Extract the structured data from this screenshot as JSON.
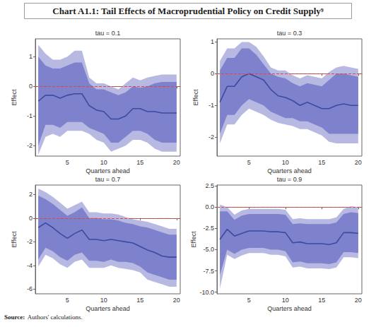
{
  "title": "Chart A1.1: Tail Effects of Macroprudential Policy on Credit Supply⁹",
  "source_label": "Source:",
  "source_text": "Authors' calculations.",
  "chart_data": [
    {
      "type": "line",
      "title": "tau = 0.1",
      "x_label": "Quarters ahead",
      "y_label": "Effect",
      "x": [
        1,
        2,
        3,
        4,
        5,
        6,
        7,
        8,
        9,
        10,
        11,
        12,
        13,
        14,
        15,
        16,
        17,
        18,
        19,
        20
      ],
      "xlim": [
        0.6,
        20.5
      ],
      "xticks": [
        5,
        10,
        15,
        20
      ],
      "ylim": [
        -2.35,
        1.6
      ],
      "yticks": [
        -2,
        -1,
        0,
        1
      ],
      "grid": false,
      "series": [
        {
          "type": "band",
          "color": "#b8b9e2",
          "lower": [
            -2.3,
            -1.7,
            -1.6,
            -1.7,
            -1.5,
            -1.5,
            -1.5,
            -1.6,
            -1.8,
            -1.9,
            -2.2,
            -2.1,
            -2.0,
            -1.8,
            -1.8,
            -1.9,
            -2.1,
            -2.2,
            -2.2,
            -2.2
          ],
          "upper": [
            1.4,
            1.1,
            0.9,
            0.9,
            1.0,
            1.2,
            1.2,
            0.3,
            0.1,
            0.1,
            0.0,
            -0.1,
            0.1,
            0.3,
            0.2,
            0.3,
            0.35,
            0.4,
            0.4,
            0.4
          ]
        },
        {
          "type": "band",
          "color": "#7e82cc",
          "lower": [
            -2.0,
            -1.3,
            -1.3,
            -1.4,
            -1.2,
            -1.2,
            -1.2,
            -1.4,
            -1.5,
            -1.6,
            -1.9,
            -1.9,
            -1.7,
            -1.5,
            -1.5,
            -1.6,
            -1.8,
            -1.9,
            -1.9,
            -1.9
          ],
          "upper": [
            1.0,
            0.7,
            0.6,
            0.6,
            0.7,
            0.8,
            0.8,
            0.1,
            -0.1,
            -0.1,
            -0.2,
            -0.3,
            -0.2,
            0.0,
            -0.05,
            0.0,
            0.1,
            0.15,
            0.15,
            0.15
          ]
        },
        {
          "type": "line",
          "color": "#3b4aa3",
          "values": [
            -0.5,
            -0.3,
            -0.3,
            -0.4,
            -0.3,
            -0.25,
            -0.25,
            -0.65,
            -0.8,
            -0.85,
            -1.1,
            -1.1,
            -1.0,
            -0.75,
            -0.75,
            -0.85,
            -0.85,
            -0.9,
            -0.9,
            -0.9
          ]
        },
        {
          "type": "hline",
          "color": "#e5473d",
          "line_style": "dashed",
          "value": 0
        }
      ]
    },
    {
      "type": "line",
      "title": "tau = 0.3",
      "x_label": "Quarters ahead",
      "y_label": "Effect",
      "x": [
        1,
        2,
        3,
        4,
        5,
        6,
        7,
        8,
        9,
        10,
        11,
        12,
        13,
        14,
        15,
        16,
        17,
        18,
        19,
        20
      ],
      "xlim": [
        0.6,
        20.5
      ],
      "xticks": [
        5,
        10,
        15,
        20
      ],
      "ylim": [
        -2.6,
        1.1
      ],
      "yticks": [
        -2,
        -1,
        0,
        1
      ],
      "grid": false,
      "series": [
        {
          "type": "band",
          "color": "#b8b9e2",
          "lower": [
            -2.2,
            -1.6,
            -1.6,
            -1.3,
            -1.1,
            -1.2,
            -1.3,
            -1.45,
            -1.55,
            -1.6,
            -1.65,
            -1.75,
            -1.75,
            -1.85,
            -1.95,
            -2.15,
            -2.2,
            -2.2,
            -2.2,
            -2.2
          ],
          "upper": [
            0.4,
            0.8,
            0.8,
            1.0,
            1.0,
            0.85,
            0.55,
            0.2,
            0.1,
            0.1,
            -0.05,
            -0.15,
            -0.05,
            -0.1,
            -0.15,
            0.05,
            0.2,
            0.25,
            0.2,
            0.15
          ]
        },
        {
          "type": "band",
          "color": "#7e82cc",
          "lower": [
            -1.9,
            -1.3,
            -1.3,
            -1.0,
            -0.8,
            -0.9,
            -1.0,
            -1.2,
            -1.3,
            -1.4,
            -1.4,
            -1.5,
            -1.5,
            -1.6,
            -1.7,
            -1.9,
            -1.9,
            -1.9,
            -1.9,
            -1.9
          ],
          "upper": [
            0.1,
            0.5,
            0.5,
            0.8,
            0.8,
            0.6,
            0.3,
            0.0,
            -0.1,
            -0.15,
            -0.3,
            -0.4,
            -0.3,
            -0.35,
            -0.4,
            -0.2,
            0.0,
            0.0,
            -0.05,
            -0.1
          ]
        },
        {
          "type": "line",
          "color": "#3b4aa3",
          "values": [
            -0.9,
            -0.4,
            -0.4,
            -0.1,
            0.0,
            -0.1,
            -0.2,
            -0.5,
            -0.7,
            -0.75,
            -0.85,
            -1.0,
            -0.9,
            -1.0,
            -1.1,
            -1.1,
            -1.0,
            -0.95,
            -1.0,
            -1.0
          ]
        },
        {
          "type": "hline",
          "color": "#e5473d",
          "line_style": "dashed",
          "value": 0
        }
      ]
    },
    {
      "type": "line",
      "title": "tau = 0.7",
      "x_label": "Quarters ahead",
      "y_label": "Effect",
      "x": [
        1,
        2,
        3,
        4,
        5,
        6,
        7,
        8,
        9,
        10,
        11,
        12,
        13,
        14,
        15,
        16,
        17,
        18,
        19,
        20
      ],
      "xlim": [
        0.6,
        20.5
      ],
      "xticks": [
        5,
        10,
        15,
        20
      ],
      "ylim": [
        -6.4,
        2.8
      ],
      "yticks": [
        -6,
        -4,
        -2,
        0,
        2
      ],
      "grid": false,
      "series": [
        {
          "type": "band",
          "color": "#b8b9e2",
          "lower": [
            -4.1,
            -3.1,
            -3.4,
            -3.9,
            -4.2,
            -3.7,
            -3.5,
            -4.2,
            -4.2,
            -4.2,
            -4.0,
            -4.2,
            -4.3,
            -4.4,
            -4.6,
            -5.2,
            -5.4,
            -5.6,
            -5.8,
            -5.8
          ],
          "upper": [
            2.5,
            2.2,
            1.8,
            1.3,
            0.8,
            1.1,
            1.4,
            0.5,
            0.5,
            0.4,
            0.4,
            0.3,
            0.1,
            -0.1,
            -0.2,
            -0.3,
            -0.5,
            -0.7,
            -0.9,
            -0.9
          ]
        },
        {
          "type": "band",
          "color": "#7e82cc",
          "lower": [
            -3.5,
            -2.5,
            -2.8,
            -3.3,
            -3.6,
            -3.1,
            -2.9,
            -3.6,
            -3.6,
            -3.7,
            -3.5,
            -3.7,
            -3.7,
            -3.8,
            -4.1,
            -4.6,
            -4.8,
            -5.0,
            -5.2,
            -5.2
          ],
          "upper": [
            1.9,
            1.6,
            1.2,
            0.7,
            0.2,
            0.5,
            0.9,
            0.0,
            0.0,
            -0.1,
            -0.1,
            -0.2,
            -0.4,
            -0.5,
            -0.7,
            -0.8,
            -1.0,
            -1.2,
            -1.4,
            -1.4
          ]
        },
        {
          "type": "line",
          "color": "#3b4aa3",
          "values": [
            -0.8,
            -0.4,
            -0.8,
            -1.3,
            -1.7,
            -1.3,
            -1.0,
            -1.8,
            -1.8,
            -1.9,
            -1.8,
            -1.9,
            -2.0,
            -2.1,
            -2.4,
            -2.7,
            -2.9,
            -3.2,
            -3.3,
            -3.3
          ]
        },
        {
          "type": "hline",
          "color": "#e5473d",
          "line_style": "dashed",
          "value": 0
        }
      ]
    },
    {
      "type": "line",
      "title": "tau = 0.9",
      "x_label": "Quarters ahead",
      "y_label": "Effect",
      "x": [
        1,
        2,
        3,
        4,
        5,
        6,
        7,
        8,
        9,
        10,
        11,
        12,
        13,
        14,
        15,
        16,
        17,
        18,
        19,
        20
      ],
      "xlim": [
        0.6,
        20.5
      ],
      "xticks": [
        5,
        10,
        15,
        20
      ],
      "ylim": [
        -10.2,
        2.6
      ],
      "yticks": [
        {
          "value": -10,
          "label": "-10.0"
        },
        {
          "value": -7.5,
          "label": "-7.5"
        },
        {
          "value": -5,
          "label": "-5.0"
        },
        {
          "value": -2.5,
          "label": "-2.5"
        },
        {
          "value": 0,
          "label": "0.0"
        },
        {
          "value": 2.5,
          "label": "2.5"
        }
      ],
      "grid": false,
      "series": [
        {
          "type": "band",
          "color": "#b8b9e2",
          "lower": [
            -9.6,
            -5.6,
            -6.1,
            -5.7,
            -5.4,
            -5.4,
            -5.4,
            -5.6,
            -5.6,
            -5.8,
            -7.1,
            -7.0,
            -7.2,
            -7.2,
            -7.2,
            -7.3,
            -7.1,
            -5.9,
            -5.9,
            -6.0
          ],
          "upper": [
            0.3,
            0.0,
            -0.9,
            -0.4,
            -0.2,
            -0.2,
            -0.2,
            -0.2,
            -0.2,
            -0.3,
            -1.4,
            -1.3,
            -1.4,
            -1.4,
            -1.4,
            -1.4,
            -1.2,
            -0.2,
            0.1,
            0.0
          ]
        },
        {
          "type": "band",
          "color": "#7e82cc",
          "lower": [
            -8.0,
            -5.0,
            -5.5,
            -5.0,
            -4.8,
            -4.8,
            -4.8,
            -5.0,
            -5.0,
            -5.2,
            -6.5,
            -6.4,
            -6.6,
            -6.6,
            -6.6,
            -6.7,
            -6.5,
            -5.3,
            -5.3,
            -5.4
          ],
          "upper": [
            -0.5,
            -0.5,
            -1.5,
            -1.0,
            -0.8,
            -0.8,
            -0.8,
            -0.8,
            -0.8,
            -0.9,
            -2.0,
            -1.9,
            -2.0,
            -2.0,
            -2.0,
            -2.0,
            -1.8,
            -0.8,
            -0.6,
            -0.7
          ]
        },
        {
          "type": "line",
          "color": "#3b4aa3",
          "values": [
            -3.8,
            -2.6,
            -3.4,
            -3.1,
            -2.8,
            -2.8,
            -2.8,
            -2.9,
            -2.9,
            -3.0,
            -4.2,
            -4.1,
            -4.3,
            -4.3,
            -4.3,
            -4.4,
            -4.2,
            -3.0,
            -3.0,
            -3.1
          ]
        },
        {
          "type": "hline",
          "color": "#e5473d",
          "line_style": "dashed",
          "value": 0
        }
      ]
    }
  ]
}
